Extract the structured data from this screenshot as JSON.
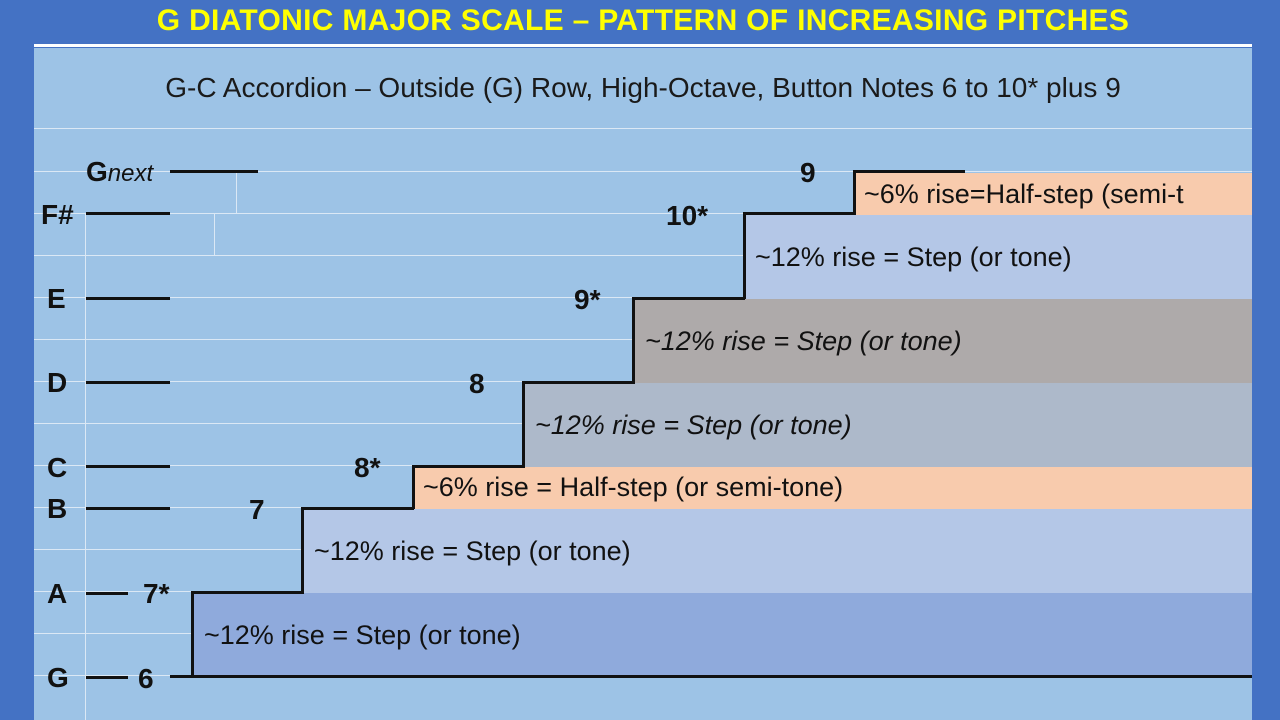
{
  "title": "G  DIATONIC MAJOR SCALE – PATTERN OF INCREASING PITCHES",
  "subtitle": "G-C Accordion – Outside (G) Row, High-Octave, Button Notes 6 to 10* plus 9",
  "scale_notes": {
    "g": "G",
    "a": "A",
    "b": "B",
    "c": "C",
    "d": "D",
    "e": "E",
    "fsharp": "F#",
    "g_next_letter": "G",
    "g_next_suffix": "next"
  },
  "button_notes": {
    "b6": "6",
    "b7s": "7*",
    "b7": "7",
    "b8s": "8*",
    "b8": "8",
    "b9s": "9*",
    "b10s": "10*",
    "b9": "9"
  },
  "steps": [
    {
      "label": "~12% rise = Step  (or tone)",
      "color": "#8faadc"
    },
    {
      "label": "~12% rise = Step  (or tone)",
      "color": "#b4c7e7"
    },
    {
      "label": "~6% rise = Half-step  (or semi-tone)",
      "color": "#f8cbad"
    },
    {
      "label": "~12% rise = Step  (or tone)",
      "color": "#adb9ca"
    },
    {
      "label": "~12% rise = Step  (or tone)",
      "color": "#aeaaaa"
    },
    {
      "label": "~12% rise = Step  (or tone)",
      "color": "#b4c7e7"
    },
    {
      "label": "~6% rise=Half-step (semi-t",
      "color": "#f8cbad"
    }
  ]
}
